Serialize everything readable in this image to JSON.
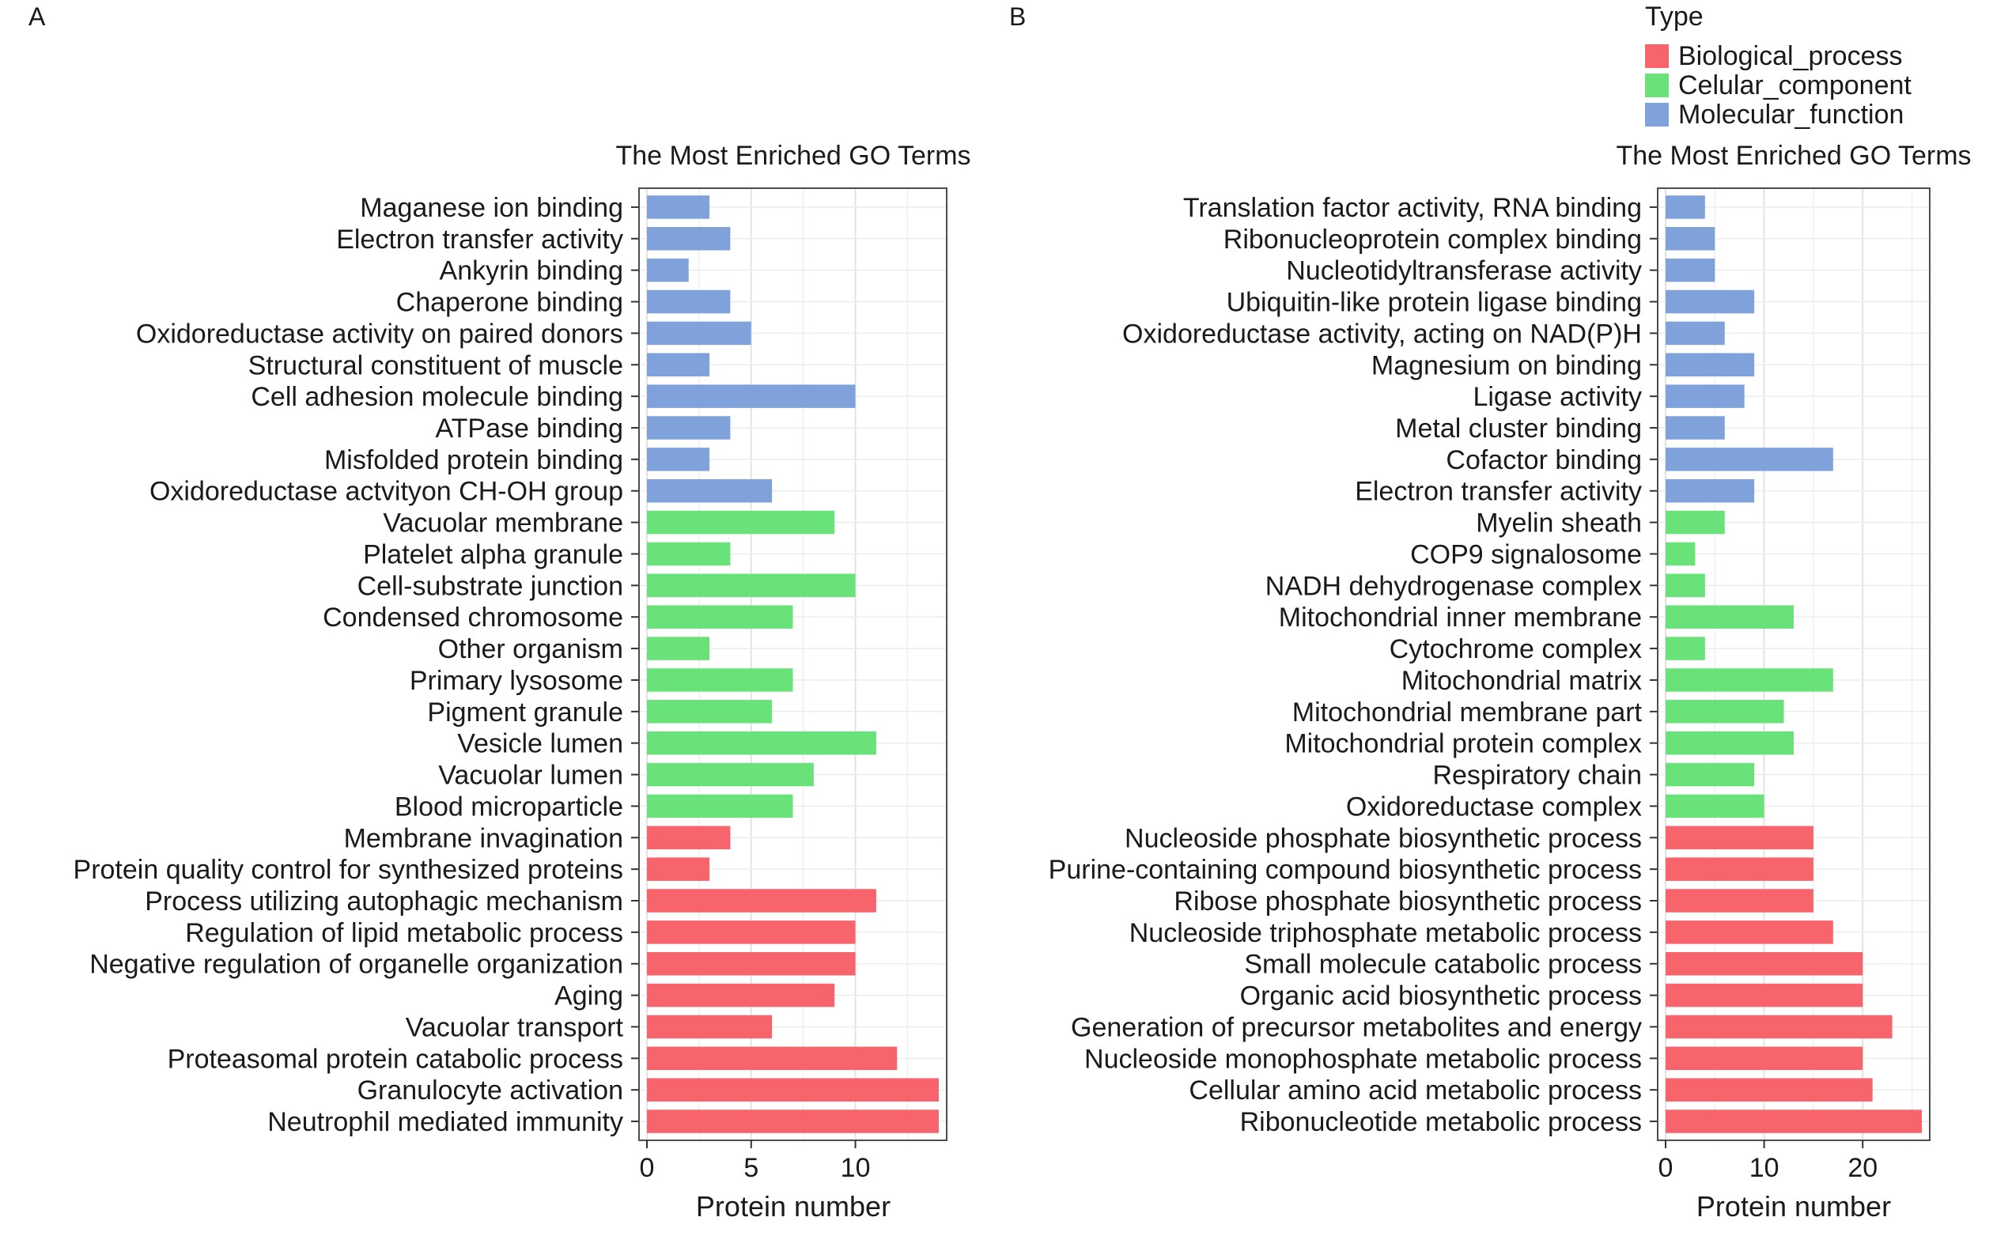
{
  "legend": {
    "title": "Type",
    "items": [
      {
        "label": "Biological_process",
        "color": "#f8646c"
      },
      {
        "label": "Celular_component",
        "color": "#6ae27a"
      },
      {
        "label": "Molecular_function",
        "color": "#7fa2da"
      }
    ]
  },
  "chart_data": [
    {
      "type": "bar",
      "orientation": "horizontal",
      "panel_label": "A",
      "title": "The Most Enriched GO Terms",
      "xlabel": "Protein number",
      "ylabel": "",
      "xlim": [
        0,
        14
      ],
      "xticks": [
        0,
        5,
        10
      ],
      "grid": true,
      "categories": [
        "Maganese ion binding",
        "Electron transfer activity",
        "Ankyrin binding",
        "Chaperone binding",
        "Oxidoreductase activity on paired donors",
        "Structural constituent of muscle",
        "Cell adhesion molecule binding",
        "ATPase binding",
        "Misfolded protein binding",
        "Oxidoreductase actvityon CH-OH group",
        "Vacuolar membrane",
        "Platelet alpha granule",
        "Cell-substrate junction",
        "Condensed chromosome",
        "Other organism",
        "Primary lysosome",
        "Pigment granule",
        "Vesicle lumen",
        "Vacuolar lumen",
        "Blood microparticle",
        "Membrane invagination",
        "Protein quality control for synthesized proteins",
        "Process utilizing autophagic mechanism",
        "Regulation of lipid metabolic process",
        "Negative regulation of organelle organization",
        "Aging",
        "Vacuolar transport",
        "Proteasomal protein catabolic process",
        "Granulocyte activation",
        "Neutrophil mediated immunity"
      ],
      "values": [
        3,
        4,
        2,
        4,
        5,
        3,
        10,
        4,
        3,
        6,
        9,
        4,
        10,
        7,
        3,
        7,
        6,
        11,
        8,
        7,
        4,
        3,
        11,
        10,
        10,
        9,
        6,
        12,
        14,
        14
      ],
      "types": [
        "Molecular_function",
        "Molecular_function",
        "Molecular_function",
        "Molecular_function",
        "Molecular_function",
        "Molecular_function",
        "Molecular_function",
        "Molecular_function",
        "Molecular_function",
        "Molecular_function",
        "Celular_component",
        "Celular_component",
        "Celular_component",
        "Celular_component",
        "Celular_component",
        "Celular_component",
        "Celular_component",
        "Celular_component",
        "Celular_component",
        "Celular_component",
        "Biological_process",
        "Biological_process",
        "Biological_process",
        "Biological_process",
        "Biological_process",
        "Biological_process",
        "Biological_process",
        "Biological_process",
        "Biological_process",
        "Biological_process"
      ]
    },
    {
      "type": "bar",
      "orientation": "horizontal",
      "panel_label": "B",
      "title": "The Most Enriched GO Terms",
      "xlabel": "Protein number",
      "ylabel": "",
      "xlim": [
        0,
        26
      ],
      "xticks": [
        0,
        10,
        20
      ],
      "grid": true,
      "categories": [
        "Translation factor activity, RNA binding",
        "Ribonucleoprotein complex binding",
        "Nucleotidyltransferase activity",
        "Ubiquitin-like protein ligase binding",
        "Oxidoreductase activity, acting on NAD(P)H",
        "Magnesium on binding",
        "Ligase activity",
        "Metal cluster binding",
        "Cofactor binding",
        "Electron transfer activity",
        "Myelin sheath",
        "COP9 signalosome",
        "NADH dehydrogenase complex",
        "Mitochondrial inner membrane",
        "Cytochrome complex",
        "Mitochondrial matrix",
        "Mitochondrial membrane part",
        "Mitochondrial protein complex",
        "Respiratory chain",
        "Oxidoreductase complex",
        "Nucleoside phosphate biosynthetic process",
        "Purine-containing compound biosynthetic process",
        "Ribose phosphate biosynthetic process",
        "Nucleoside triphosphate metabolic process",
        "Small molecule catabolic process",
        "Organic acid biosynthetic process",
        "Generation of precursor metabolites and energy",
        "Nucleoside monophosphate metabolic process",
        "Cellular amino acid metabolic process",
        "Ribonucleotide metabolic process"
      ],
      "values": [
        4,
        5,
        5,
        9,
        6,
        9,
        8,
        6,
        17,
        9,
        6,
        3,
        4,
        13,
        4,
        17,
        12,
        13,
        9,
        10,
        15,
        15,
        15,
        17,
        20,
        20,
        23,
        20,
        21,
        26
      ],
      "types": [
        "Molecular_function",
        "Molecular_function",
        "Molecular_function",
        "Molecular_function",
        "Molecular_function",
        "Molecular_function",
        "Molecular_function",
        "Molecular_function",
        "Molecular_function",
        "Molecular_function",
        "Celular_component",
        "Celular_component",
        "Celular_component",
        "Celular_component",
        "Celular_component",
        "Celular_component",
        "Celular_component",
        "Celular_component",
        "Celular_component",
        "Celular_component",
        "Biological_process",
        "Biological_process",
        "Biological_process",
        "Biological_process",
        "Biological_process",
        "Biological_process",
        "Biological_process",
        "Biological_process",
        "Biological_process",
        "Biological_process"
      ]
    }
  ]
}
